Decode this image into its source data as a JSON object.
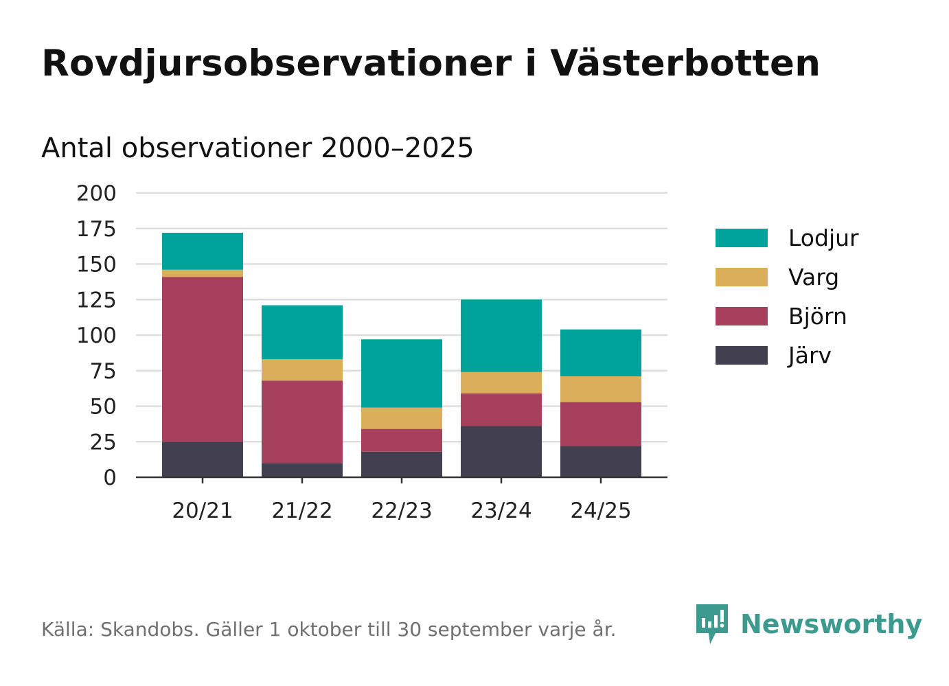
{
  "title": "Rovdjursobservationer i Västerbotten",
  "subtitle": "Antal observationer 2000–2025",
  "source": "Källa: Skandobs. Gäller 1 oktober till 30 september varje år.",
  "brand": {
    "name": "Newsworthy",
    "icon": "newsworthy-logo-icon",
    "color": "#3d9a8e"
  },
  "chart_data": {
    "type": "bar",
    "stacked": true,
    "title": "Rovdjursobservationer i Västerbotten",
    "subtitle": "Antal observationer 2000–2025",
    "xlabel": "",
    "ylabel": "",
    "ylim": [
      0,
      200
    ],
    "yticks": [
      0,
      25,
      50,
      75,
      100,
      125,
      150,
      175,
      200
    ],
    "grid": true,
    "legend_position": "right",
    "categories": [
      "20/21",
      "21/22",
      "22/23",
      "23/24",
      "24/25"
    ],
    "series": [
      {
        "name": "Järv",
        "color": "#42404f",
        "values": [
          25,
          10,
          18,
          36,
          22
        ]
      },
      {
        "name": "Björn",
        "color": "#a6405d",
        "values": [
          116,
          58,
          16,
          23,
          31
        ]
      },
      {
        "name": "Varg",
        "color": "#dbae5b",
        "values": [
          5,
          15,
          15,
          15,
          18
        ]
      },
      {
        "name": "Lodjur",
        "color": "#00a39b",
        "values": [
          26,
          38,
          48,
          51,
          33
        ]
      }
    ],
    "legend_order": [
      "Lodjur",
      "Varg",
      "Björn",
      "Järv"
    ]
  }
}
